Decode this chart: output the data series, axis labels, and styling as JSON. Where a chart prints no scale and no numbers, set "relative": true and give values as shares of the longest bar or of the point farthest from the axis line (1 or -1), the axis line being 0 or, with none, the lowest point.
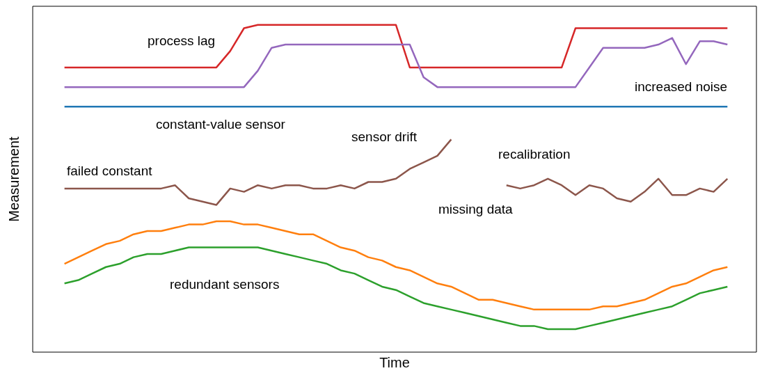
{
  "chart_data": {
    "type": "line",
    "relative": true,
    "xlabel": "Time",
    "ylabel": "Measurement",
    "categories": [
      null,
      null,
      null,
      null,
      null,
      null,
      null,
      null,
      null,
      null,
      null,
      null,
      null,
      null,
      null,
      null,
      null,
      null,
      null,
      null,
      null,
      null,
      null,
      null,
      null,
      null,
      null,
      null,
      null,
      null,
      null,
      null,
      null,
      null,
      null,
      null,
      null,
      null,
      null,
      null,
      null,
      null,
      null,
      null,
      null,
      null,
      null,
      null,
      null
    ],
    "series": [
      {
        "color": "#d62728",
        "values": [
          0.87,
          0.87,
          0.87,
          0.87,
          0.87,
          0.87,
          0.87,
          0.87,
          0.87,
          0.87,
          0.87,
          0.87,
          0.92,
          0.99,
          1.0,
          1.0,
          1.0,
          1.0,
          1.0,
          1.0,
          1.0,
          1.0,
          1.0,
          1.0,
          1.0,
          0.87,
          0.87,
          0.87,
          0.87,
          0.87,
          0.87,
          0.87,
          0.87,
          0.87,
          0.87,
          0.87,
          0.87,
          0.99,
          0.99,
          0.99,
          0.99,
          0.99,
          0.99,
          0.99,
          0.99,
          0.99,
          0.99,
          0.99,
          0.99
        ]
      },
      {
        "color": "#9467bd",
        "values": [
          0.81,
          0.81,
          0.81,
          0.81,
          0.81,
          0.81,
          0.81,
          0.81,
          0.81,
          0.81,
          0.81,
          0.81,
          0.81,
          0.81,
          0.86,
          0.93,
          0.94,
          0.94,
          0.94,
          0.94,
          0.94,
          0.94,
          0.94,
          0.94,
          0.94,
          0.94,
          0.84,
          0.81,
          0.81,
          0.81,
          0.81,
          0.81,
          0.81,
          0.81,
          0.81,
          0.81,
          0.81,
          0.81,
          0.87,
          0.93,
          0.93,
          0.93,
          0.93,
          0.94,
          0.96,
          0.88,
          0.95,
          0.95,
          0.94
        ]
      },
      {
        "color": "#1f77b4",
        "values": [
          0.75,
          0.75,
          0.75,
          0.75,
          0.75,
          0.75,
          0.75,
          0.75,
          0.75,
          0.75,
          0.75,
          0.75,
          0.75,
          0.75,
          0.75,
          0.75,
          0.75,
          0.75,
          0.75,
          0.75,
          0.75,
          0.75,
          0.75,
          0.75,
          0.75,
          0.75,
          0.75,
          0.75,
          0.75,
          0.75,
          0.75,
          0.75,
          0.75,
          0.75,
          0.75,
          0.75,
          0.75,
          0.75,
          0.75,
          0.75,
          0.75,
          0.75,
          0.75,
          0.75,
          0.75,
          0.75,
          0.75,
          0.75,
          0.75
        ]
      },
      {
        "color": "#8c564b",
        "values": [
          0.5,
          0.5,
          0.5,
          0.5,
          0.5,
          0.5,
          0.5,
          0.5,
          0.51,
          0.47,
          0.46,
          0.45,
          0.5,
          0.49,
          0.51,
          0.5,
          0.51,
          0.51,
          0.5,
          0.5,
          0.51,
          0.5,
          0.52,
          0.52,
          0.53,
          0.56,
          0.58,
          0.6,
          0.65,
          null,
          null,
          null,
          0.51,
          0.5,
          0.51,
          0.53,
          0.51,
          0.48,
          0.51,
          0.5,
          0.47,
          0.46,
          0.49,
          0.53,
          0.48,
          0.48,
          0.5,
          0.49,
          0.53
        ]
      },
      {
        "color": "#ff7f0e",
        "values": [
          0.27,
          0.29,
          0.31,
          0.33,
          0.34,
          0.36,
          0.37,
          0.37,
          0.38,
          0.39,
          0.39,
          0.4,
          0.4,
          0.39,
          0.39,
          0.38,
          0.37,
          0.36,
          0.36,
          0.34,
          0.32,
          0.31,
          0.29,
          0.28,
          0.26,
          0.25,
          0.23,
          0.21,
          0.2,
          0.18,
          0.16,
          0.16,
          0.15,
          0.14,
          0.13,
          0.13,
          0.13,
          0.13,
          0.13,
          0.14,
          0.14,
          0.15,
          0.16,
          0.18,
          0.2,
          0.21,
          0.23,
          0.25,
          0.26
        ]
      },
      {
        "color": "#2ca02c",
        "values": [
          0.21,
          0.22,
          0.24,
          0.26,
          0.27,
          0.29,
          0.3,
          0.3,
          0.31,
          0.32,
          0.32,
          0.32,
          0.32,
          0.32,
          0.32,
          0.31,
          0.3,
          0.29,
          0.28,
          0.27,
          0.25,
          0.24,
          0.22,
          0.2,
          0.19,
          0.17,
          0.15,
          0.14,
          0.13,
          0.12,
          0.11,
          0.1,
          0.09,
          0.08,
          0.08,
          0.07,
          0.07,
          0.07,
          0.08,
          0.09,
          0.1,
          0.11,
          0.12,
          0.13,
          0.14,
          0.16,
          0.18,
          0.19,
          0.2
        ]
      }
    ],
    "annotations": [
      "process lag",
      "increased noise",
      "constant-value sensor",
      "sensor drift",
      "failed constant",
      "recalibration",
      "missing data",
      "redundant sensors"
    ]
  }
}
